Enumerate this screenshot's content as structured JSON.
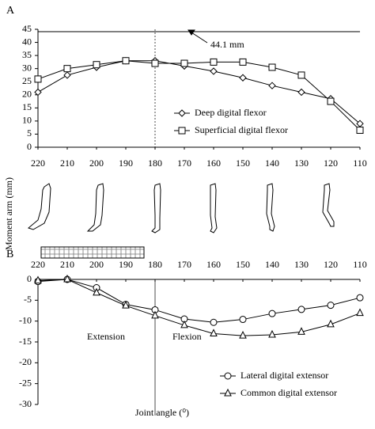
{
  "chart_data": [
    {
      "type": "line",
      "panel": "A",
      "ylabel": "Moment arm (mm)",
      "x": [
        220,
        210,
        200,
        190,
        180,
        170,
        160,
        150,
        140,
        130,
        120,
        110
      ],
      "xlim": [
        220,
        110
      ],
      "xticks": [
        220,
        210,
        200,
        190,
        180,
        170,
        160,
        150,
        140,
        130,
        120,
        110
      ],
      "ylim": [
        0,
        45
      ],
      "yticks": [
        0,
        5,
        10,
        15,
        20,
        25,
        30,
        35,
        40,
        45
      ],
      "hline": 44.1,
      "hline_label": "44.1 mm",
      "vline": 180,
      "series": [
        {
          "name": "Deep digital flexor",
          "color": "#000000",
          "marker": "diamond",
          "values": [
            21,
            27.5,
            30.5,
            33,
            33,
            31,
            29,
            26.5,
            23.5,
            21,
            18.5,
            9
          ]
        },
        {
          "name": "Superficial digital flexor",
          "color": "#000000",
          "marker": "square",
          "values": [
            26,
            30,
            31.5,
            33,
            32,
            32,
            32.5,
            32.5,
            30.5,
            27.5,
            17.5,
            6.5
          ]
        }
      ]
    },
    {
      "type": "line",
      "panel": "B",
      "xlabel": "Joint angle (⁰)",
      "x": [
        220,
        210,
        200,
        190,
        180,
        170,
        160,
        150,
        140,
        130,
        120,
        110
      ],
      "xlim": [
        220,
        110
      ],
      "xticks": [
        220,
        210,
        200,
        190,
        180,
        170,
        160,
        150,
        140,
        130,
        120,
        110
      ],
      "ylim": [
        -30,
        0
      ],
      "yticks": [
        0,
        -5,
        -10,
        -15,
        -20,
        -25,
        -30
      ],
      "vline": 180,
      "annotations": [
        "Extension",
        "Flexion"
      ],
      "series": [
        {
          "name": "Lateral digital extensor",
          "color": "#000000",
          "marker": "circle",
          "values": [
            -0.5,
            0,
            -2,
            -6,
            -7.3,
            -9.5,
            -10.3,
            -9.6,
            -8.2,
            -7.2,
            -6.2,
            -4.4
          ]
        },
        {
          "name": "Common digital extensor",
          "color": "#000000",
          "marker": "triangle",
          "values": [
            -0.3,
            0,
            -3.2,
            -6.3,
            -8.7,
            -11,
            -13,
            -13.5,
            -13.3,
            -12.6,
            -10.8,
            -8.1
          ]
        }
      ]
    }
  ]
}
